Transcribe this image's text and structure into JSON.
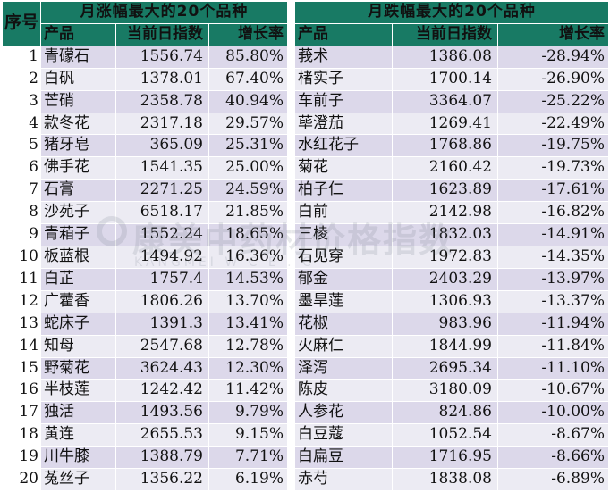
{
  "header": {
    "index_label": "序号",
    "rise_title": "月涨幅最大的20个品种",
    "fall_title": "月跌幅最大的20个品种",
    "col_product": "产品",
    "col_index": "当前日指数",
    "col_growth": "增长率"
  },
  "rows": [
    {
      "idx": "1",
      "up_name": "青礞石",
      "up_index": "1556.74",
      "up_pct": "85.80%",
      "down_name": "莪术",
      "down_index": "1386.08",
      "down_pct": "-28.94%"
    },
    {
      "idx": "2",
      "up_name": "白矾",
      "up_index": "1378.01",
      "up_pct": "67.40%",
      "down_name": "楮实子",
      "down_index": "1700.14",
      "down_pct": "-26.90%"
    },
    {
      "idx": "3",
      "up_name": "芒硝",
      "up_index": "2358.78",
      "up_pct": "40.94%",
      "down_name": "车前子",
      "down_index": "3364.07",
      "down_pct": "-25.22%"
    },
    {
      "idx": "4",
      "up_name": "款冬花",
      "up_index": "2317.18",
      "up_pct": "29.57%",
      "down_name": "荜澄茄",
      "down_index": "1269.41",
      "down_pct": "-22.49%"
    },
    {
      "idx": "5",
      "up_name": "猪牙皂",
      "up_index": "365.09",
      "up_pct": "25.31%",
      "down_name": "水红花子",
      "down_index": "1768.86",
      "down_pct": "-19.75%"
    },
    {
      "idx": "6",
      "up_name": "佛手花",
      "up_index": "1541.35",
      "up_pct": "25.00%",
      "down_name": "菊花",
      "down_index": "2160.42",
      "down_pct": "-19.73%"
    },
    {
      "idx": "7",
      "up_name": "石膏",
      "up_index": "2271.25",
      "up_pct": "24.59%",
      "down_name": "柏子仁",
      "down_index": "1623.89",
      "down_pct": "-17.61%"
    },
    {
      "idx": "8",
      "up_name": "沙苑子",
      "up_index": "6518.17",
      "up_pct": "21.85%",
      "down_name": "白前",
      "down_index": "2142.98",
      "down_pct": "-16.82%"
    },
    {
      "idx": "9",
      "up_name": "青葙子",
      "up_index": "1552.24",
      "up_pct": "18.65%",
      "down_name": "三棱",
      "down_index": "1832.03",
      "down_pct": "-14.91%"
    },
    {
      "idx": "10",
      "up_name": "板蓝根",
      "up_index": "1494.92",
      "up_pct": "16.36%",
      "down_name": "石见穿",
      "down_index": "1972.83",
      "down_pct": "-14.35%"
    },
    {
      "idx": "11",
      "up_name": "白芷",
      "up_index": "1757.4",
      "up_pct": "14.53%",
      "down_name": "郁金",
      "down_index": "2403.29",
      "down_pct": "-13.97%"
    },
    {
      "idx": "12",
      "up_name": "广藿香",
      "up_index": "1806.26",
      "up_pct": "13.70%",
      "down_name": "墨旱莲",
      "down_index": "1306.93",
      "down_pct": "-13.37%"
    },
    {
      "idx": "13",
      "up_name": "蛇床子",
      "up_index": "1391.3",
      "up_pct": "13.41%",
      "down_name": "花椒",
      "down_index": "983.96",
      "down_pct": "-11.94%"
    },
    {
      "idx": "14",
      "up_name": "知母",
      "up_index": "2547.68",
      "up_pct": "12.78%",
      "down_name": "火麻仁",
      "down_index": "1844.99",
      "down_pct": "-11.84%"
    },
    {
      "idx": "15",
      "up_name": "野菊花",
      "up_index": "3624.43",
      "up_pct": "12.30%",
      "down_name": "泽泻",
      "down_index": "2695.34",
      "down_pct": "-11.10%"
    },
    {
      "idx": "16",
      "up_name": "半枝莲",
      "up_index": "1242.42",
      "up_pct": "11.42%",
      "down_name": "陈皮",
      "down_index": "3180.09",
      "down_pct": "-10.67%"
    },
    {
      "idx": "17",
      "up_name": "独活",
      "up_index": "1493.56",
      "up_pct": "9.79%",
      "down_name": "人参花",
      "down_index": "824.86",
      "down_pct": "-10.00%"
    },
    {
      "idx": "18",
      "up_name": "黄连",
      "up_index": "2655.53",
      "up_pct": "9.15%",
      "down_name": "白豆蔻",
      "down_index": "1052.54",
      "down_pct": "-8.67%"
    },
    {
      "idx": "19",
      "up_name": "川牛膝",
      "up_index": "1388.79",
      "up_pct": "7.71%",
      "down_name": "白扁豆",
      "down_index": "1716.95",
      "down_pct": "-8.66%"
    },
    {
      "idx": "20",
      "up_name": "菟丝子",
      "up_index": "1356.22",
      "up_pct": "6.19%",
      "down_name": "赤芍",
      "down_index": "1838.08",
      "down_pct": "-6.89%"
    }
  ],
  "colors": {
    "header_bg": "#187a64",
    "row_odd": "#dcd8ea",
    "row_even": "#ecebf3"
  },
  "watermark": {
    "text": "康美中药材价格指数",
    "subtext": "KANGMEI   W   C   E   .   C"
  }
}
